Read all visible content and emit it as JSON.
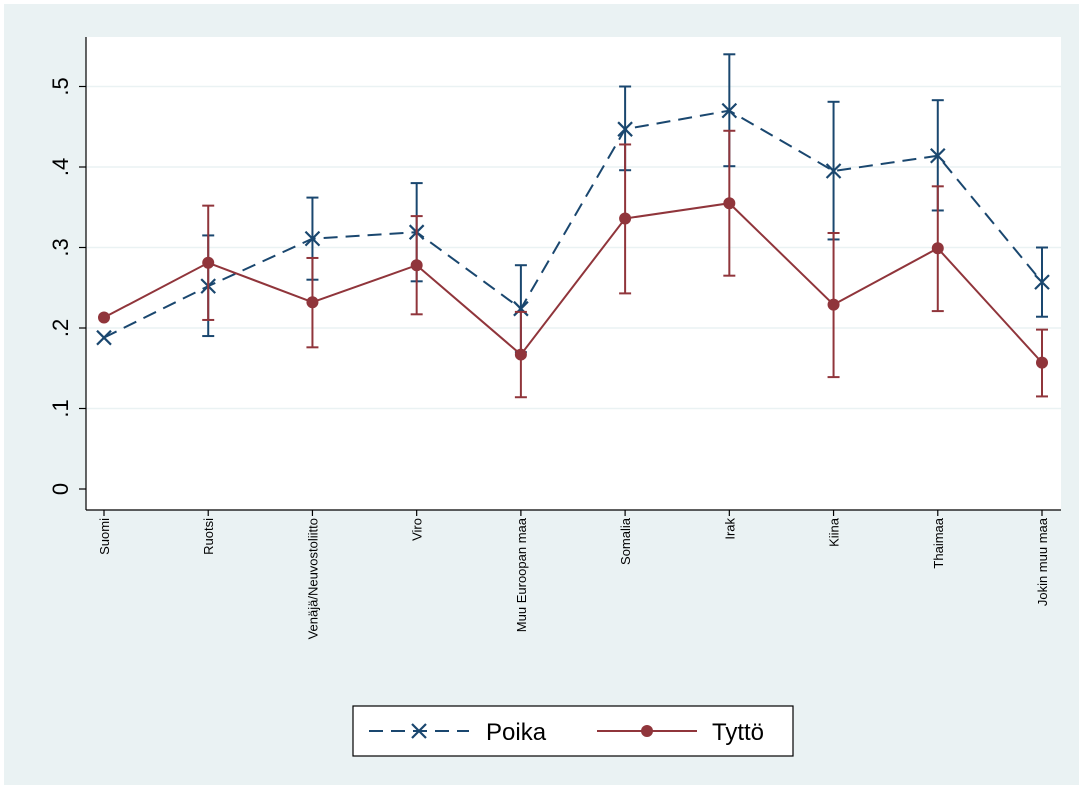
{
  "chart_data": {
    "type": "line",
    "title": "",
    "xlabel": "",
    "ylabel": "",
    "categories": [
      "Suomi",
      "Ruotsi",
      "Venäjä/Neuvostoliitto",
      "Viro",
      "Muu Euroopan maa",
      "Somalia",
      "Irak",
      "Kiina",
      "Thaimaa",
      "Jokin muu maa"
    ],
    "yticks": [
      0,
      0.1,
      0.2,
      0.3,
      0.4,
      0.5
    ],
    "ytick_labels": [
      "0",
      ".1",
      ".2",
      ".3",
      ".4",
      ".5"
    ],
    "ylim": [
      -0.025,
      0.56
    ],
    "grid": true,
    "legend_position": "bottom",
    "series": [
      {
        "name": "Poika",
        "color": "#1a476f",
        "line_style": "dashed",
        "marker": "x",
        "values": [
          0.188,
          0.252,
          0.311,
          0.319,
          0.224,
          0.447,
          0.47,
          0.395,
          0.414,
          0.257
        ],
        "ci_low": [
          null,
          0.19,
          0.26,
          0.258,
          0.17,
          0.396,
          0.401,
          0.31,
          0.346,
          0.214
        ],
        "ci_high": [
          null,
          0.315,
          0.362,
          0.38,
          0.278,
          0.5,
          0.54,
          0.481,
          0.483,
          0.3
        ]
      },
      {
        "name": "Tyttö",
        "color": "#90353b",
        "line_style": "solid",
        "marker": "circle",
        "values": [
          0.213,
          0.281,
          0.232,
          0.278,
          0.167,
          0.336,
          0.355,
          0.229,
          0.299,
          0.157
        ],
        "ci_low": [
          null,
          0.21,
          0.176,
          0.217,
          0.114,
          0.243,
          0.265,
          0.139,
          0.221,
          0.115
        ],
        "ci_high": [
          null,
          0.352,
          0.287,
          0.339,
          0.22,
          0.428,
          0.445,
          0.318,
          0.376,
          0.198
        ]
      }
    ]
  }
}
